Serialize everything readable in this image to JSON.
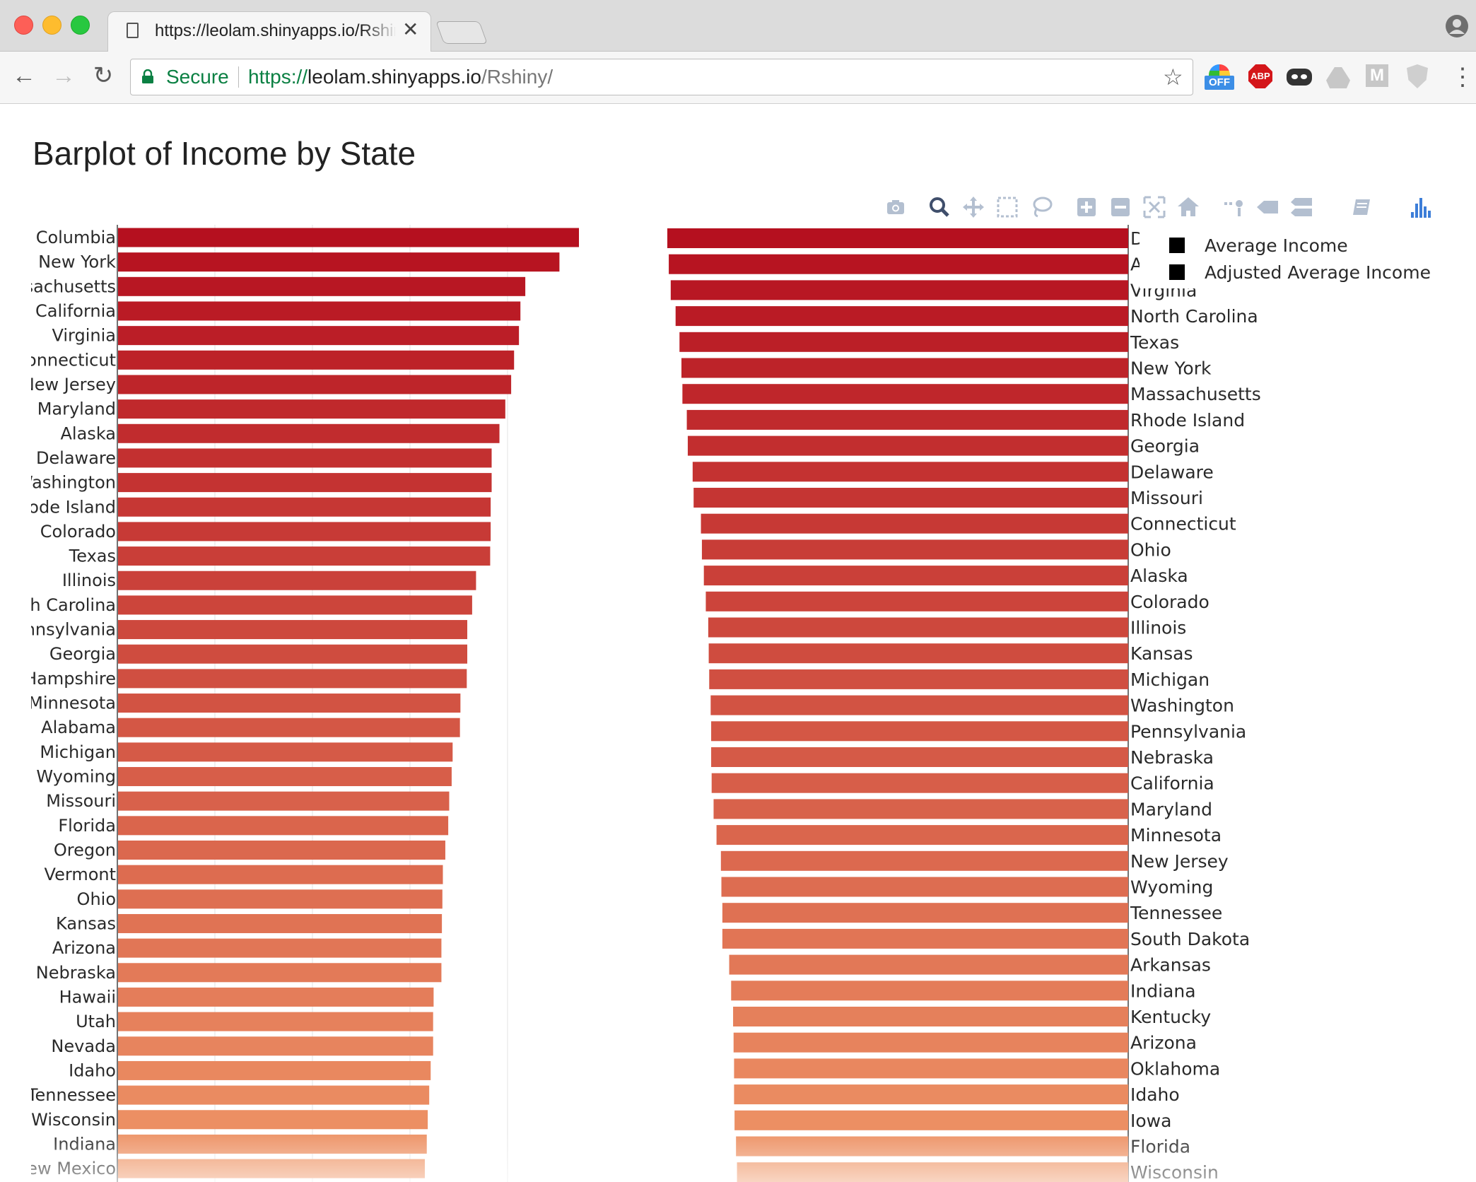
{
  "browser": {
    "tab_title": "https://leolam.shinyapps.io/Rshiny/",
    "tab_close": "✕",
    "secure_label": "Secure",
    "url_scheme": "https://",
    "url_host": "leolam.shinyapps.io",
    "url_path": "/Rshiny/",
    "nav_back": "←",
    "nav_forward": "→",
    "nav_reload": "↻",
    "bookmark_star": "☆",
    "menu": "⋮",
    "extensions": {
      "off_badge": "OFF",
      "abp_label": "ABP",
      "m_label": "M"
    },
    "icons": [
      "page-icon",
      "lock-icon",
      "star-icon",
      "profile-icon",
      "menu-icon"
    ]
  },
  "page": {
    "title": "Barplot of Income by State"
  },
  "modebar": {
    "buttons": [
      "camera-icon",
      "zoom-icon",
      "pan-icon",
      "box-select-icon",
      "lasso-select-icon",
      "zoom-in-icon",
      "zoom-out-icon",
      "autoscale-icon",
      "reset-axes-icon",
      "spike-lines-icon",
      "hover-closest-icon",
      "hover-compare-icon",
      "editor-icon",
      "plotly-logo-icon"
    ]
  },
  "chart_data": [
    {
      "type": "bar",
      "orientation": "horizontal",
      "legend_name": "Average Income",
      "categories": [
        "Columbia",
        "New York",
        "Massachusetts",
        "California",
        "Virginia",
        "Connecticut",
        "New Jersey",
        "Maryland",
        "Alaska",
        "Delaware",
        "Washington",
        "Rhode Island",
        "Colorado",
        "Texas",
        "Illinois",
        "North Carolina",
        "Pennsylvania",
        "Georgia",
        "New Hampshire",
        "Minnesota",
        "Alabama",
        "Michigan",
        "Wyoming",
        "Missouri",
        "Florida",
        "Oregon",
        "Vermont",
        "Ohio",
        "Kansas",
        "Arizona",
        "Nebraska",
        "Hawaii",
        "Utah",
        "Nevada",
        "Idaho",
        "Tennessee",
        "Wisconsin",
        "Indiana",
        "New Mexico"
      ],
      "values": [
        94.5,
        90.5,
        83.5,
        82.5,
        82.2,
        81.2,
        80.6,
        79.4,
        78.2,
        76.6,
        76.6,
        76.4,
        76.4,
        76.3,
        73.4,
        72.6,
        71.6,
        71.6,
        71.5,
        70.2,
        70.1,
        68.6,
        68.4,
        67.9,
        67.7,
        67.1,
        66.6,
        66.5,
        66.4,
        66.3,
        66.3,
        64.7,
        64.6,
        64.6,
        64.1,
        63.8,
        63.5,
        63.3,
        62.9
      ],
      "xlim": [
        0,
        100
      ],
      "gridlines_at": [
        20,
        40,
        60,
        80
      ],
      "color_scale": [
        "#b5101f",
        "#ef9667"
      ]
    },
    {
      "type": "bar",
      "orientation": "horizontal",
      "direction": "reversed",
      "legend_name": "Adjusted Average Income",
      "categories": [
        "Di",
        "Al",
        "Virginia",
        "North Carolina",
        "Texas",
        "New York",
        "Massachusetts",
        "Rhode Island",
        "Georgia",
        "Delaware",
        "Missouri",
        "Connecticut",
        "Ohio",
        "Alaska",
        "Colorado",
        "Illinois",
        "Kansas",
        "Michigan",
        "Washington",
        "Pennsylvania",
        "Nebraska",
        "California",
        "Maryland",
        "Minnesota",
        "New Jersey",
        "Wyoming",
        "Tennessee",
        "South Dakota",
        "Arkansas",
        "Indiana",
        "Kentucky",
        "Arizona",
        "Oklahoma",
        "Idaho",
        "Iowa",
        "Florida",
        "Wisconsin"
      ],
      "values": [
        94.6,
        94.3,
        93.9,
        92.9,
        92.1,
        91.7,
        91.5,
        90.6,
        90.4,
        89.4,
        89.2,
        87.7,
        87.5,
        87.1,
        86.7,
        86.2,
        86.1,
        86.0,
        85.7,
        85.6,
        85.6,
        85.5,
        85.1,
        84.5,
        83.6,
        83.5,
        83.3,
        83.3,
        81.9,
        81.5,
        81.1,
        81.0,
        80.9,
        80.9,
        80.8,
        80.5,
        80.3
      ],
      "color_scale": [
        "#b5101f",
        "#ef9667"
      ]
    }
  ],
  "legend": {
    "items": [
      {
        "label": "Average Income",
        "swatch_color": "#000000"
      },
      {
        "label": "Adjusted Average Income",
        "swatch_color": "#000000"
      }
    ],
    "position": "top-right"
  }
}
